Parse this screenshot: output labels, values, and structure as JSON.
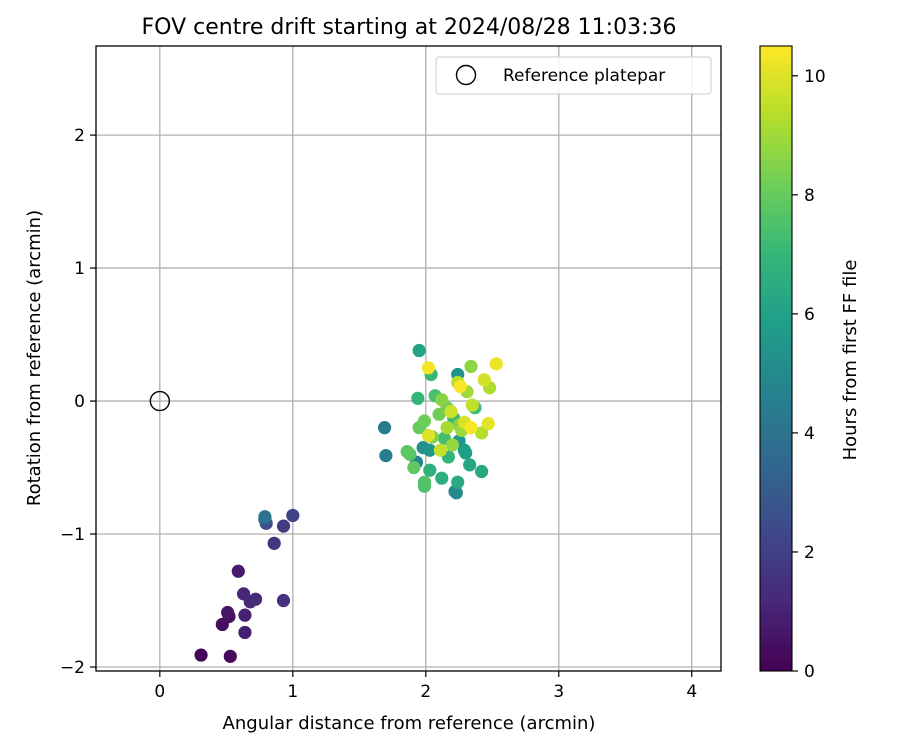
{
  "chart_data": {
    "type": "scatter",
    "title": "FOV centre drift starting at 2024/08/28 11:03:36",
    "xlabel": "Angular distance from reference (arcmin)",
    "ylabel": "Rotation from reference (arcmin)",
    "xlim": [
      -0.48,
      4.22
    ],
    "ylim": [
      -2.03,
      2.67
    ],
    "xticks": [
      0,
      1,
      2,
      3,
      4
    ],
    "yticks": [
      -2,
      -1,
      0,
      1,
      2
    ],
    "xtick_labels": [
      "0",
      "1",
      "2",
      "3",
      "4"
    ],
    "ytick_labels": [
      "−2",
      "−1",
      "0",
      "1",
      "2"
    ],
    "grid": true,
    "legend": {
      "position": "top-right",
      "label": "Reference platepar"
    },
    "reference_point": {
      "x": 0,
      "y": 0
    },
    "colorbar": {
      "label": "Hours from first FF file",
      "range": [
        0,
        10.5
      ],
      "ticks": [
        0,
        2,
        4,
        6,
        8,
        10
      ],
      "tick_labels": [
        "0",
        "2",
        "4",
        "6",
        "8",
        "10"
      ],
      "colormap": "viridis",
      "colors": [
        "#440154",
        "#482878",
        "#3e4989",
        "#31688e",
        "#26828e",
        "#1f9e89",
        "#35b779",
        "#6ece58",
        "#b5de2b",
        "#fde725"
      ]
    },
    "points": [
      {
        "x": 0.31,
        "y": -1.91,
        "t": 0.1
      },
      {
        "x": 0.53,
        "y": -1.92,
        "t": 0.2
      },
      {
        "x": 0.47,
        "y": -1.68,
        "t": 0.3
      },
      {
        "x": 0.52,
        "y": -1.62,
        "t": 0.5
      },
      {
        "x": 0.51,
        "y": -1.59,
        "t": 0.6
      },
      {
        "x": 0.59,
        "y": -1.28,
        "t": 0.8
      },
      {
        "x": 0.64,
        "y": -1.74,
        "t": 0.9
      },
      {
        "x": 0.64,
        "y": -1.61,
        "t": 1.0
      },
      {
        "x": 0.63,
        "y": -1.45,
        "t": 1.1
      },
      {
        "x": 0.68,
        "y": -1.51,
        "t": 1.2
      },
      {
        "x": 0.72,
        "y": -1.49,
        "t": 1.3
      },
      {
        "x": 0.93,
        "y": -1.5,
        "t": 1.5
      },
      {
        "x": 0.86,
        "y": -1.07,
        "t": 1.7
      },
      {
        "x": 0.93,
        "y": -0.94,
        "t": 1.9
      },
      {
        "x": 1.0,
        "y": -0.86,
        "t": 2.1
      },
      {
        "x": 0.8,
        "y": -0.92,
        "t": 2.4
      },
      {
        "x": 0.79,
        "y": -0.89,
        "t": 3.0
      },
      {
        "x": 0.79,
        "y": -0.87,
        "t": 4.0
      },
      {
        "x": 1.69,
        "y": -0.2,
        "t": 4.3
      },
      {
        "x": 1.7,
        "y": -0.41,
        "t": 4.5
      },
      {
        "x": 1.93,
        "y": -0.46,
        "t": 4.7
      },
      {
        "x": 2.22,
        "y": -0.68,
        "t": 4.8
      },
      {
        "x": 2.23,
        "y": -0.69,
        "t": 5.0
      },
      {
        "x": 1.98,
        "y": -0.35,
        "t": 5.2
      },
      {
        "x": 2.24,
        "y": 0.2,
        "t": 5.3
      },
      {
        "x": 2.03,
        "y": -0.37,
        "t": 5.5
      },
      {
        "x": 2.25,
        "y": -0.3,
        "t": 5.6
      },
      {
        "x": 2.29,
        "y": -0.37,
        "t": 5.8
      },
      {
        "x": 2.3,
        "y": -0.39,
        "t": 5.9
      },
      {
        "x": 1.95,
        "y": 0.38,
        "t": 6.1
      },
      {
        "x": 2.33,
        "y": -0.48,
        "t": 6.2
      },
      {
        "x": 2.42,
        "y": -0.53,
        "t": 6.3
      },
      {
        "x": 2.24,
        "y": -0.61,
        "t": 6.4
      },
      {
        "x": 2.12,
        "y": -0.58,
        "t": 6.6
      },
      {
        "x": 2.03,
        "y": -0.52,
        "t": 6.7
      },
      {
        "x": 2.17,
        "y": -0.42,
        "t": 6.8
      },
      {
        "x": 1.94,
        "y": 0.02,
        "t": 6.9
      },
      {
        "x": 2.04,
        "y": 0.2,
        "t": 7.0
      },
      {
        "x": 2.21,
        "y": -0.13,
        "t": 7.1
      },
      {
        "x": 2.37,
        "y": -0.05,
        "t": 7.2
      },
      {
        "x": 2.14,
        "y": -0.28,
        "t": 7.3
      },
      {
        "x": 2.07,
        "y": 0.04,
        "t": 7.4
      },
      {
        "x": 1.99,
        "y": -0.64,
        "t": 7.5
      },
      {
        "x": 1.99,
        "y": -0.61,
        "t": 7.6
      },
      {
        "x": 1.88,
        "y": -0.4,
        "t": 7.7
      },
      {
        "x": 1.86,
        "y": -0.38,
        "t": 7.8
      },
      {
        "x": 1.91,
        "y": -0.5,
        "t": 7.9
      },
      {
        "x": 1.95,
        "y": -0.2,
        "t": 8.0
      },
      {
        "x": 1.99,
        "y": -0.15,
        "t": 8.1
      },
      {
        "x": 2.1,
        "y": -0.1,
        "t": 8.2
      },
      {
        "x": 2.16,
        "y": -0.05,
        "t": 8.3
      },
      {
        "x": 2.05,
        "y": -0.27,
        "t": 8.4
      },
      {
        "x": 2.25,
        "y": -0.18,
        "t": 8.5
      },
      {
        "x": 2.12,
        "y": 0.01,
        "t": 8.6
      },
      {
        "x": 2.34,
        "y": 0.26,
        "t": 8.7
      },
      {
        "x": 2.2,
        "y": -0.33,
        "t": 8.8
      },
      {
        "x": 2.27,
        "y": -0.22,
        "t": 8.9
      },
      {
        "x": 2.31,
        "y": 0.07,
        "t": 9.0
      },
      {
        "x": 2.16,
        "y": -0.2,
        "t": 9.1
      },
      {
        "x": 2.48,
        "y": 0.1,
        "t": 9.2
      },
      {
        "x": 2.42,
        "y": -0.24,
        "t": 9.3
      },
      {
        "x": 2.24,
        "y": 0.14,
        "t": 9.4
      },
      {
        "x": 2.35,
        "y": -0.03,
        "t": 9.5
      },
      {
        "x": 2.11,
        "y": -0.37,
        "t": 9.6
      },
      {
        "x": 2.19,
        "y": -0.08,
        "t": 9.7
      },
      {
        "x": 2.44,
        "y": 0.16,
        "t": 9.8
      },
      {
        "x": 2.29,
        "y": -0.16,
        "t": 9.9
      },
      {
        "x": 2.02,
        "y": -0.26,
        "t": 10.0
      },
      {
        "x": 2.47,
        "y": -0.17,
        "t": 10.1
      },
      {
        "x": 2.53,
        "y": 0.28,
        "t": 10.2
      },
      {
        "x": 2.02,
        "y": 0.25,
        "t": 10.3
      },
      {
        "x": 2.26,
        "y": 0.11,
        "t": 10.4
      },
      {
        "x": 2.34,
        "y": -0.2,
        "t": 10.4
      }
    ]
  }
}
